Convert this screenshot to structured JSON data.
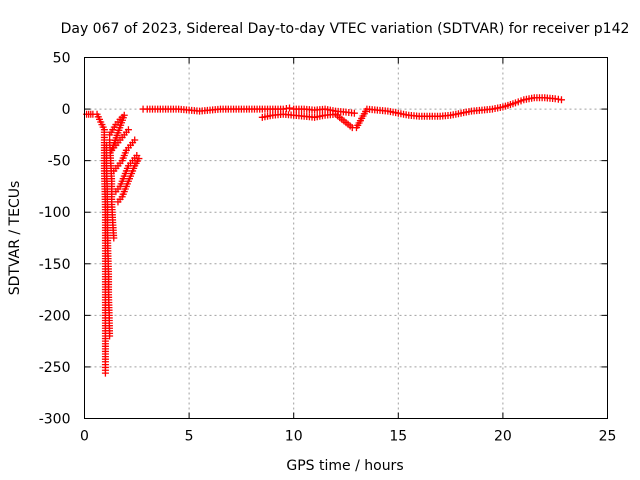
{
  "chart_data": {
    "type": "scatter",
    "title": "Day 067 of 2023, Sidereal Day-to-day VTEC variation (SDTVAR) for receiver p142",
    "xlabel": "GPS time / hours",
    "ylabel": "SDTVAR / TECUs",
    "xlim": [
      0,
      25
    ],
    "ylim": [
      -300,
      50
    ],
    "xticks": [
      0,
      5,
      10,
      15,
      20,
      25
    ],
    "yticks": [
      50,
      0,
      -50,
      -100,
      -150,
      -200,
      -250,
      -300
    ],
    "grid": true,
    "marker": "plus",
    "series_color": "#ff0000",
    "series": [
      {
        "name": "SDTVAR",
        "points": [
          [
            0.1,
            -5
          ],
          [
            0.2,
            -5
          ],
          [
            0.3,
            -5
          ],
          [
            0.4,
            -5
          ],
          [
            0.6,
            -5
          ],
          [
            0.95,
            -20
          ],
          [
            0.95,
            -40
          ],
          [
            0.95,
            -60
          ],
          [
            0.98,
            -80
          ],
          [
            1.0,
            -100
          ],
          [
            1.0,
            -130
          ],
          [
            1.0,
            -160
          ],
          [
            1.0,
            -190
          ],
          [
            1.0,
            -210
          ],
          [
            1.0,
            -230
          ],
          [
            1.0,
            -245
          ],
          [
            1.0,
            -256
          ],
          [
            1.05,
            -35
          ],
          [
            1.05,
            -55
          ],
          [
            1.08,
            -75
          ],
          [
            1.1,
            -95
          ],
          [
            1.1,
            -120
          ],
          [
            1.12,
            -140
          ],
          [
            1.15,
            -160
          ],
          [
            1.15,
            -180
          ],
          [
            1.18,
            -200
          ],
          [
            1.2,
            -220
          ],
          [
            1.2,
            -30
          ],
          [
            1.25,
            -50
          ],
          [
            1.3,
            -70
          ],
          [
            1.3,
            -90
          ],
          [
            1.35,
            -110
          ],
          [
            1.4,
            -125
          ],
          [
            1.2,
            -25
          ],
          [
            1.35,
            -20
          ],
          [
            1.5,
            -15
          ],
          [
            1.7,
            -10
          ],
          [
            1.9,
            -6
          ],
          [
            1.3,
            -40
          ],
          [
            1.5,
            -35
          ],
          [
            1.7,
            -30
          ],
          [
            1.9,
            -25
          ],
          [
            2.1,
            -20
          ],
          [
            1.4,
            -60
          ],
          [
            1.6,
            -55
          ],
          [
            1.8,
            -50
          ],
          [
            2.0,
            -40
          ],
          [
            2.2,
            -35
          ],
          [
            2.4,
            -30
          ],
          [
            1.5,
            -80
          ],
          [
            1.7,
            -75
          ],
          [
            1.9,
            -65
          ],
          [
            2.1,
            -55
          ],
          [
            2.3,
            -50
          ],
          [
            2.5,
            -45
          ],
          [
            1.6,
            -90
          ],
          [
            1.8,
            -85
          ],
          [
            2.0,
            -75
          ],
          [
            2.2,
            -65
          ],
          [
            2.4,
            -55
          ],
          [
            2.6,
            -48
          ],
          [
            2.8,
            0
          ],
          [
            3.0,
            0
          ],
          [
            3.5,
            0
          ],
          [
            4.0,
            0
          ],
          [
            4.5,
            0
          ],
          [
            5.0,
            -1
          ],
          [
            5.5,
            -2
          ],
          [
            6.0,
            -1
          ],
          [
            6.5,
            0
          ],
          [
            7.0,
            0
          ],
          [
            7.5,
            0
          ],
          [
            8.0,
            0
          ],
          [
            8.5,
            0
          ],
          [
            9.0,
            0
          ],
          [
            9.5,
            0
          ],
          [
            9.8,
            1
          ],
          [
            10.0,
            0
          ],
          [
            10.5,
            0
          ],
          [
            11.0,
            -1
          ],
          [
            11.5,
            0
          ],
          [
            12.0,
            -2
          ],
          [
            12.5,
            -3
          ],
          [
            12.9,
            -4
          ],
          [
            8.5,
            -8
          ],
          [
            9.0,
            -6
          ],
          [
            9.5,
            -5
          ],
          [
            10.0,
            -6
          ],
          [
            10.5,
            -7
          ],
          [
            11.0,
            -8
          ],
          [
            11.5,
            -6
          ],
          [
            12.0,
            -5
          ],
          [
            12.8,
            -18
          ],
          [
            13.0,
            -18
          ],
          [
            13.5,
            0
          ],
          [
            14.0,
            -1
          ],
          [
            14.5,
            -2
          ],
          [
            15.0,
            -4
          ],
          [
            15.5,
            -6
          ],
          [
            16.0,
            -7
          ],
          [
            16.5,
            -7
          ],
          [
            17.0,
            -7
          ],
          [
            17.5,
            -6
          ],
          [
            18.0,
            -4
          ],
          [
            18.5,
            -2
          ],
          [
            19.0,
            -1
          ],
          [
            19.5,
            0
          ],
          [
            20.0,
            2
          ],
          [
            20.6,
            6
          ],
          [
            21.0,
            9
          ],
          [
            21.5,
            11
          ],
          [
            22.0,
            11
          ],
          [
            22.5,
            10
          ],
          [
            22.8,
            9
          ]
        ]
      }
    ]
  }
}
